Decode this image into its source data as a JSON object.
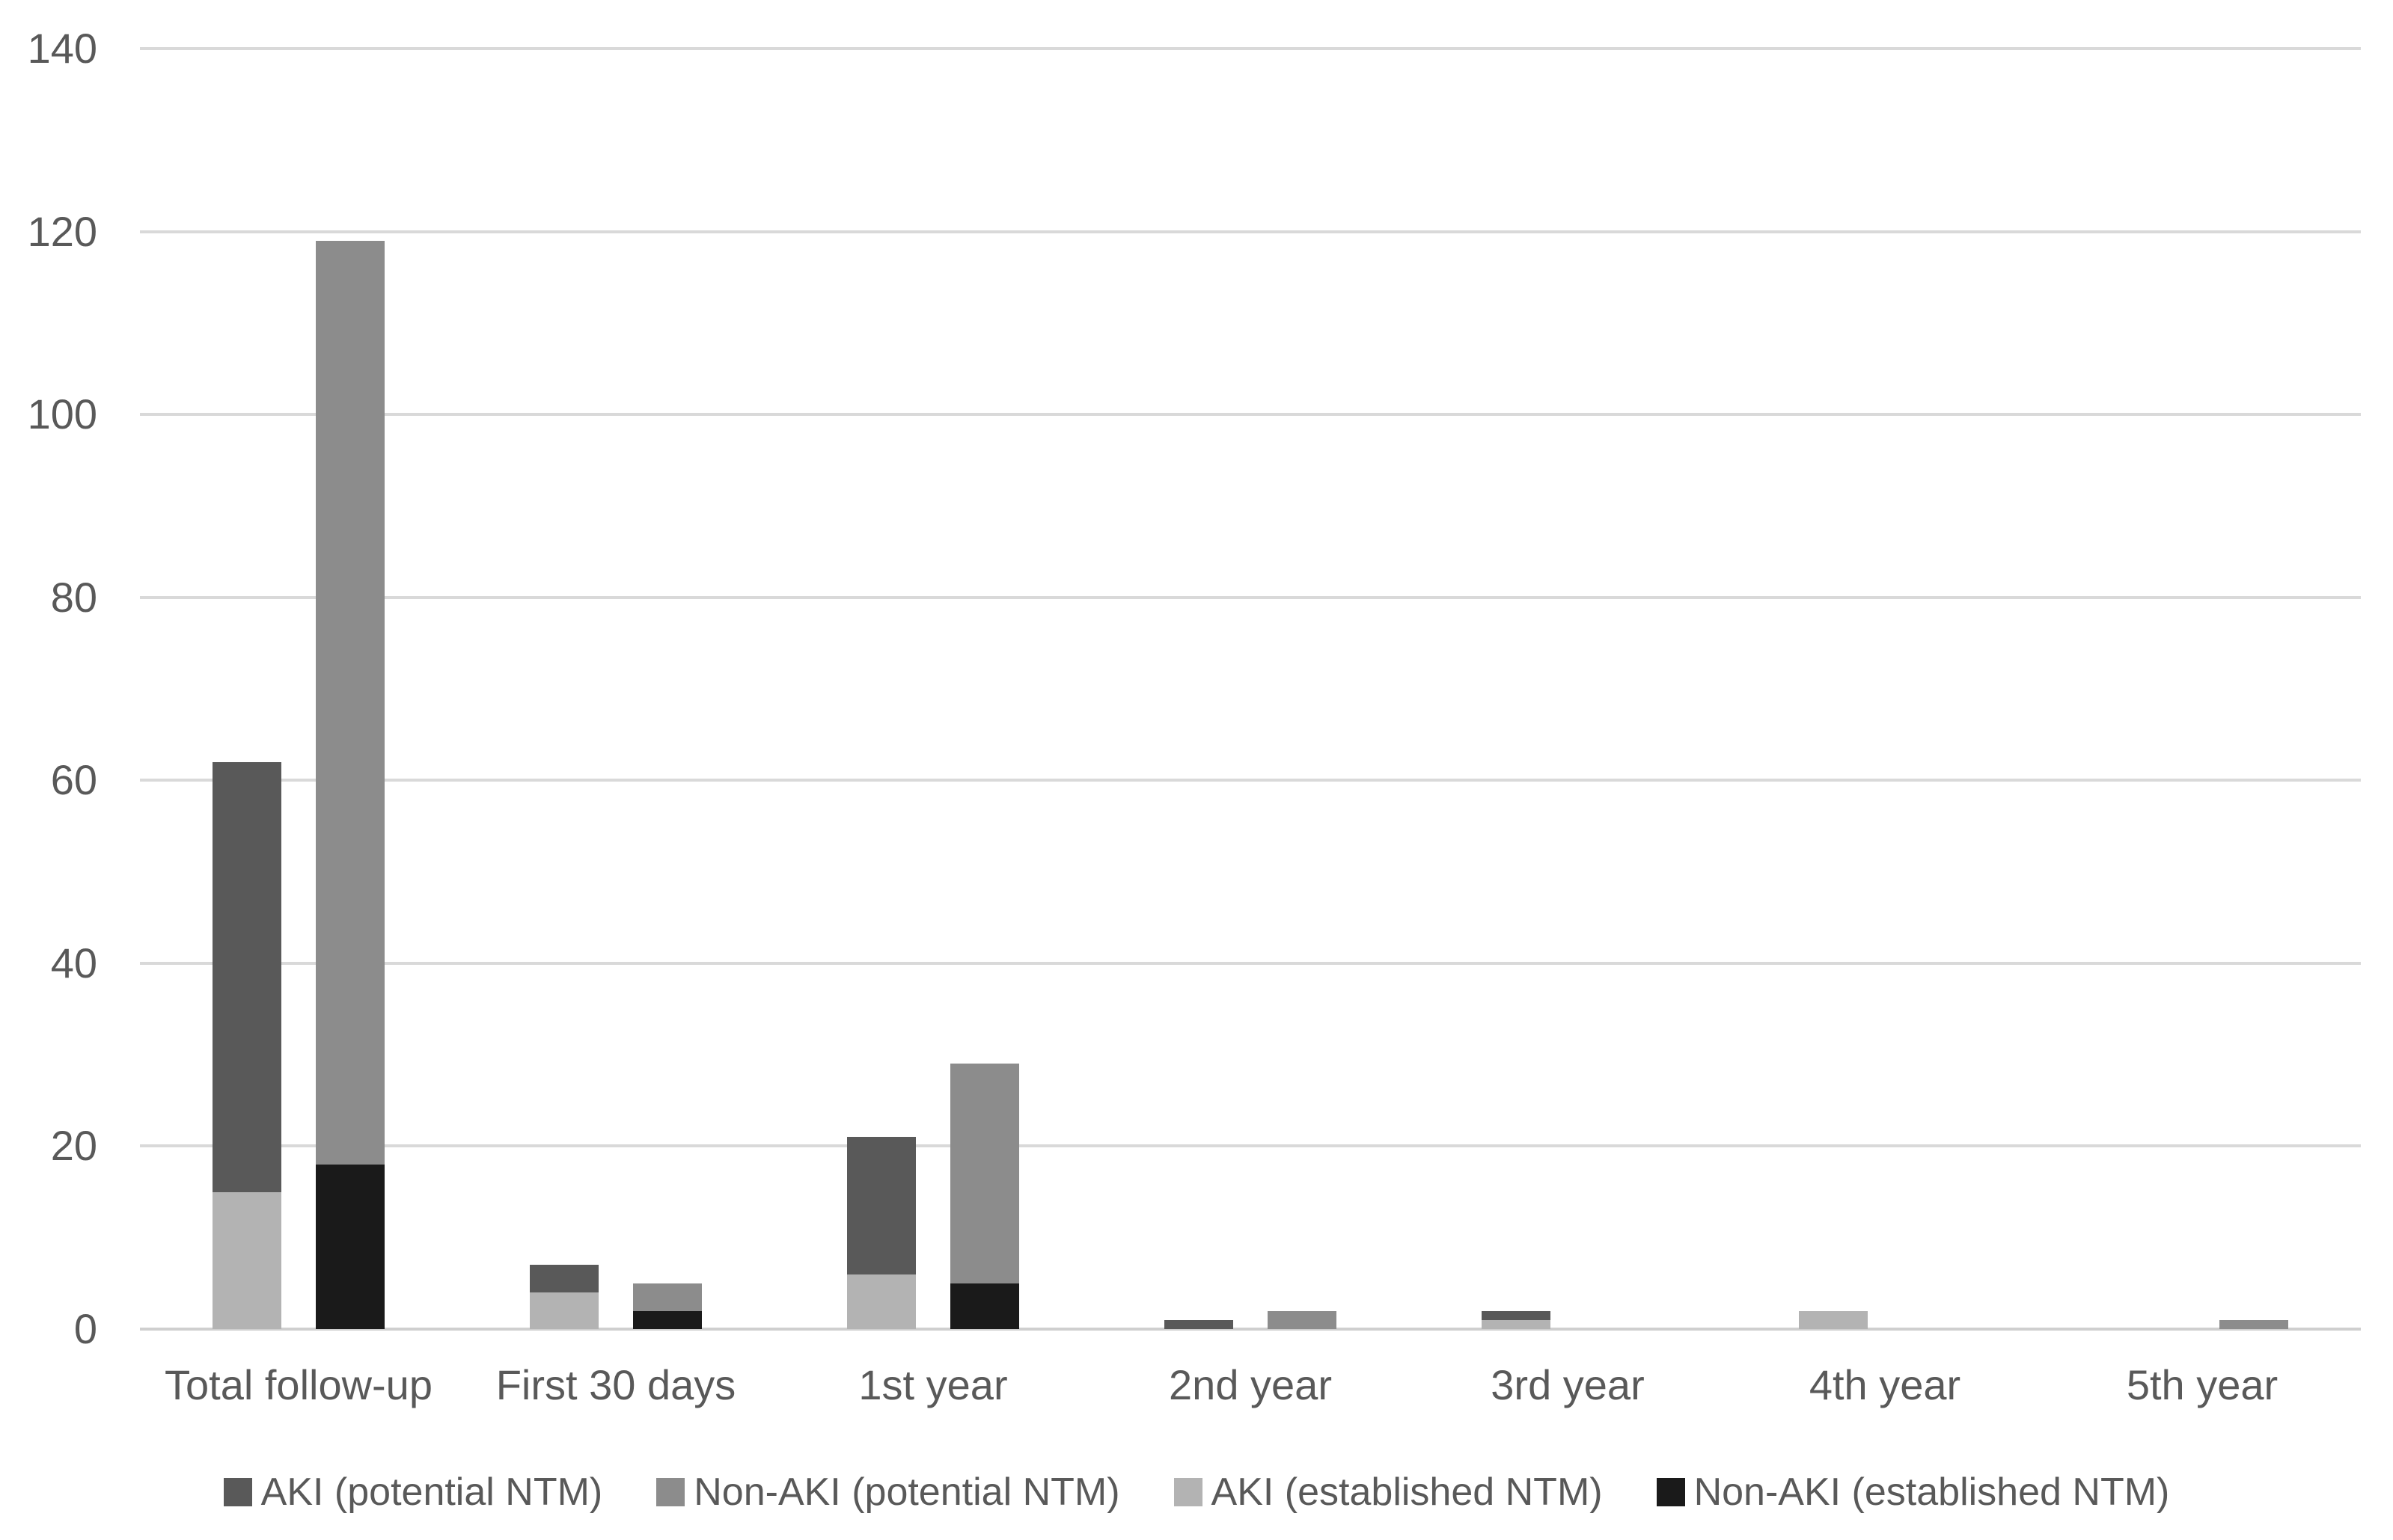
{
  "chart_data": {
    "type": "bar",
    "stacked": true,
    "title": "",
    "xlabel": "",
    "ylabel": "",
    "categories": [
      "Total follow-up",
      "First 30 days",
      "1st year",
      "2nd year",
      "3rd year",
      "4th year",
      "5th year"
    ],
    "series": [
      {
        "name": "AKI (potential NTM)",
        "color": "#595959",
        "bar_group": "AKI",
        "values": [
          47,
          3,
          15,
          1,
          1,
          0,
          0
        ]
      },
      {
        "name": "Non-AKI (potential NTM)",
        "color": "#8c8c8c",
        "bar_group": "Non-AKI",
        "values": [
          101,
          3,
          24,
          2,
          0,
          0,
          1
        ]
      },
      {
        "name": "AKI (established NTM)",
        "color": "#b3b3b3",
        "bar_group": "AKI",
        "values": [
          15,
          4,
          6,
          0,
          1,
          2,
          0
        ]
      },
      {
        "name": "Non-AKI (established NTM)",
        "color": "#1a1a1a",
        "bar_group": "Non-AKI",
        "values": [
          18,
          2,
          5,
          0,
          0,
          0,
          0
        ]
      }
    ],
    "stack_order_bottom_to_top": {
      "AKI": [
        "AKI (established NTM)",
        "AKI (potential NTM)"
      ],
      "Non-AKI": [
        "Non-AKI (established NTM)",
        "Non-AKI (potential NTM)"
      ]
    },
    "bar_totals": {
      "AKI": [
        62,
        7,
        21,
        1,
        2,
        2,
        0
      ],
      "Non-AKI": [
        119,
        5,
        29,
        2,
        0,
        0,
        1
      ]
    },
    "ylim": [
      0,
      140
    ],
    "yticks": [
      0,
      20,
      40,
      60,
      80,
      100,
      120,
      140
    ],
    "grid": "horizontal",
    "legend_position": "bottom",
    "legend": [
      "AKI (potential NTM)",
      "Non-AKI (potential NTM)",
      "AKI (established NTM)",
      "Non-AKI (established NTM)"
    ]
  },
  "colors": {
    "background": "#ffffff",
    "gridline": "#d9d9d9",
    "axis_text": "#595959",
    "series_aki_potential": "#595959",
    "series_nonaki_potential": "#8c8c8c",
    "series_aki_established": "#b3b3b3",
    "series_nonaki_established": "#1a1a1a"
  }
}
